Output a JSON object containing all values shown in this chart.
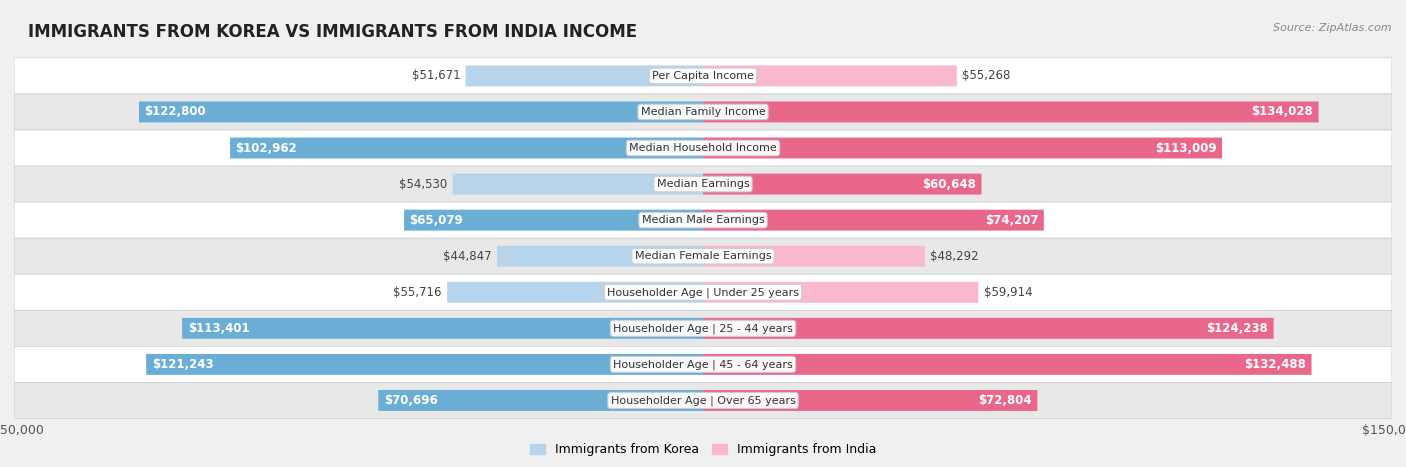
{
  "title": "IMMIGRANTS FROM KOREA VS IMMIGRANTS FROM INDIA INCOME",
  "source": "Source: ZipAtlas.com",
  "categories": [
    "Per Capita Income",
    "Median Family Income",
    "Median Household Income",
    "Median Earnings",
    "Median Male Earnings",
    "Median Female Earnings",
    "Householder Age | Under 25 years",
    "Householder Age | 25 - 44 years",
    "Householder Age | 45 - 64 years",
    "Householder Age | Over 65 years"
  ],
  "korea_values": [
    51671,
    122800,
    102962,
    54530,
    65079,
    44847,
    55716,
    113401,
    121243,
    70696
  ],
  "india_values": [
    55268,
    134028,
    113009,
    60648,
    74207,
    48292,
    59914,
    124238,
    132488,
    72804
  ],
  "korea_labels": [
    "$51,671",
    "$122,800",
    "$102,962",
    "$54,530",
    "$65,079",
    "$44,847",
    "$55,716",
    "$113,401",
    "$121,243",
    "$70,696"
  ],
  "india_labels": [
    "$55,268",
    "$134,028",
    "$113,009",
    "$60,648",
    "$74,207",
    "$48,292",
    "$59,914",
    "$124,238",
    "$132,488",
    "$72,804"
  ],
  "korea_color_light": "#b8d4ea",
  "korea_color_dark": "#6aaed6",
  "india_color_light": "#f9b8cc",
  "india_color_dark": "#e8678a",
  "max_value": 150000,
  "inside_threshold": 60000,
  "legend_korea": "Immigrants from Korea",
  "legend_india": "Immigrants from India",
  "bg_color": "#f0f0f0",
  "row_colors": [
    "#ffffff",
    "#e8e8e8"
  ],
  "label_fontsize": 8.5,
  "cat_fontsize": 8.0,
  "title_fontsize": 12,
  "source_fontsize": 8
}
